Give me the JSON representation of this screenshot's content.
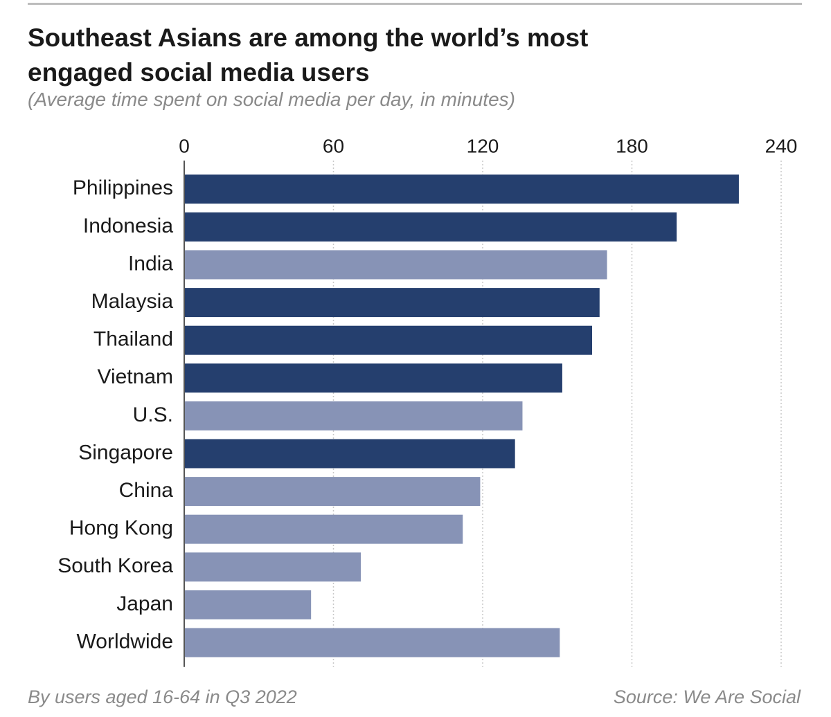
{
  "chart_data": {
    "type": "hbar",
    "title": "Southeast Asians are among the world’s most engaged social media users",
    "subtitle": "(Average time spent on social media per day, in minutes)",
    "categories": [
      "Philippines",
      "Indonesia",
      "India",
      "Malaysia",
      "Thailand",
      "Vietnam",
      "U.S.",
      "Singapore",
      "China",
      "Hong Kong",
      "South Korea",
      "Japan",
      "Worldwide"
    ],
    "values": [
      223,
      198,
      170,
      167,
      164,
      152,
      136,
      133,
      119,
      112,
      71,
      51,
      151
    ],
    "colors": [
      "#253f6e",
      "#253f6e",
      "#8793b6",
      "#253f6e",
      "#253f6e",
      "#253f6e",
      "#8793b6",
      "#253f6e",
      "#8793b6",
      "#8793b6",
      "#8793b6",
      "#8793b6",
      "#8793b6"
    ],
    "xlim": [
      0,
      240
    ],
    "xticks": [
      0,
      60,
      120,
      180,
      240
    ],
    "grid": true,
    "note": "By users aged 16-64 in Q3 2022",
    "source": "Source: We Are Social"
  }
}
